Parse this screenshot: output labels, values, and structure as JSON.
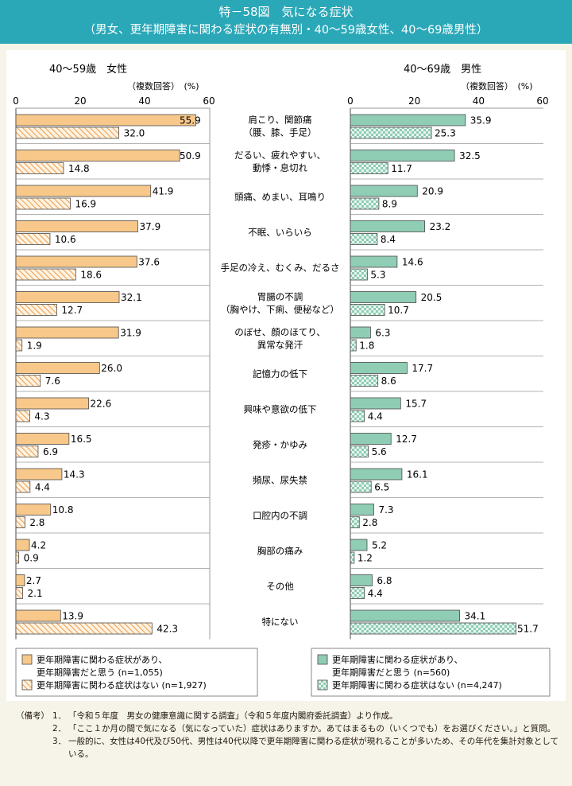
{
  "header": {
    "title": "特－58図　気になる症状",
    "subtitle": "（男女、更年期障害に関わる症状の有無別・40～59歳女性、40～69歳男性）"
  },
  "colors": {
    "header_bg": "#2aa8b8",
    "female_solid": "#f8c88a",
    "female_hatch": "#f0a050",
    "male_solid": "#8fcdb4",
    "male_check": "#8fcdb4",
    "outline": "#4a4a4a"
  },
  "chart_data": [
    {
      "type": "bar",
      "title": "40～59歳　女性",
      "unit_label": "（複数回答）　(%)",
      "ticks": [
        0,
        20,
        40,
        60
      ],
      "xlim": [
        0,
        60
      ],
      "categories": [
        "肩こり、関節痛\n（腰、膝、手足）",
        "だるい、疲れやすい、\n動悸・息切れ",
        "頭痛、めまい、耳鳴り",
        "不眠、いらいら",
        "手足の冷え、むくみ、だるさ",
        "胃腸の不調\n（胸やけ、下痢、便秘など）",
        "のぼせ、顔のほてり、\n異常な発汗",
        "記憶力の低下",
        "興味や意欲の低下",
        "発疹・かゆみ",
        "頻尿、尿失禁",
        "口腔内の不調",
        "胸部の痛み",
        "その他",
        "特にない"
      ],
      "series": [
        {
          "name": "更年期障害に関わる症状があり、\n更年期障害だと思う (n=1,055)",
          "values": [
            55.9,
            50.9,
            41.9,
            37.9,
            37.6,
            32.1,
            31.9,
            26.0,
            22.6,
            16.5,
            14.3,
            10.8,
            4.2,
            2.7,
            13.9
          ],
          "labels": [
            "55.9",
            "50.9",
            "41.9",
            "37.9",
            "37.6",
            "32.1",
            "31.9",
            "26.0",
            "22.6",
            "16.5",
            "14.3",
            "10.8",
            "4.2",
            "2.7",
            "13.9"
          ]
        },
        {
          "name": "更年期障害に関わる症状はない (n=1,927)",
          "values": [
            32.0,
            14.8,
            16.9,
            10.6,
            18.6,
            12.7,
            1.9,
            7.6,
            4.3,
            6.9,
            4.4,
            2.8,
            0.9,
            2.1,
            42.3
          ],
          "labels": [
            "32.0",
            "14.8",
            "16.9",
            "10.6",
            "18.6",
            "12.7",
            "1.9",
            "7.6",
            "4.3",
            "6.9",
            "4.4",
            "2.8",
            "0.9",
            "2.1",
            "42.3"
          ]
        }
      ]
    },
    {
      "type": "bar",
      "title": "40～69歳　男性",
      "unit_label": "（複数回答）　(%)",
      "ticks": [
        0,
        20,
        40,
        60
      ],
      "xlim": [
        0,
        60
      ],
      "series": [
        {
          "name": "更年期障害に関わる症状があり、\n更年期障害だと思う (n=560)",
          "values": [
            35.9,
            32.5,
            20.9,
            23.2,
            14.6,
            20.5,
            6.3,
            17.7,
            15.7,
            12.7,
            16.1,
            7.3,
            5.2,
            6.8,
            34.1
          ],
          "labels": [
            "35.9",
            "32.5",
            "20.9",
            "23.2",
            "14.6",
            "20.5",
            "6.3",
            "17.7",
            "15.7",
            "12.7",
            "16.1",
            "7.3",
            "5.2",
            "6.8",
            "34.1"
          ]
        },
        {
          "name": "更年期障害に関わる症状はない (n=4,247)",
          "values": [
            25.3,
            11.7,
            8.9,
            8.4,
            5.3,
            10.7,
            1.8,
            8.6,
            4.4,
            5.6,
            6.5,
            2.8,
            1.2,
            4.4,
            51.7
          ],
          "labels": [
            "25.3",
            "11.7",
            "8.9",
            "8.4",
            "5.3",
            "10.7",
            "1.8",
            "8.6",
            "4.4",
            "5.6",
            "6.5",
            "2.8",
            "1.2",
            "4.4",
            "51.7"
          ]
        }
      ]
    }
  ],
  "notes": {
    "label": "（備考）",
    "items": [
      {
        "num": "1．",
        "text": "「令和５年度　男女の健康意識に関する調査」（令和５年度内閣府委託調査）より作成。"
      },
      {
        "num": "2．",
        "text": "「ここ１か月の間で気になる（気になっていた）症状はありますか。あてはまるもの（いくつでも）をお選びください。」と質問。"
      },
      {
        "num": "3．",
        "text": "一般的に、女性は40代及び50代、男性は40代以降で更年期障害に関わる症状が現れることが多いため、その年代を集計対象としている。"
      }
    ]
  }
}
